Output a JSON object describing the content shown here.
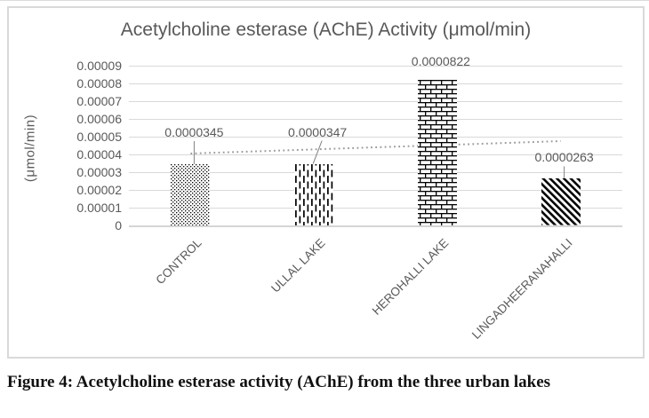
{
  "caption": "Figure 4: Acetylcholine esterase activity (AChE) from the three urban lakes",
  "chart_data": {
    "type": "bar",
    "title": "Acetylcholine esterase (AChE) Activity (μmol/min)",
    "ylabel": "(μmol/min)",
    "categories": [
      "CONTROL",
      "ULLAL LAKE",
      "HEROHALLI LAKE",
      "LINGADHEERANAHALLI"
    ],
    "values": [
      3.45e-05,
      3.47e-05,
      8.22e-05,
      2.63e-05
    ],
    "data_labels": [
      "0.0000345",
      "0.0000347",
      "0.0000822",
      "0.0000263"
    ],
    "bar_patterns": [
      "dots",
      "vertical-dashes",
      "bricks",
      "diagonal-stripes"
    ],
    "ylim": [
      0,
      9e-05
    ],
    "yticks": [
      "0.00009",
      "0.00008",
      "0.00007",
      "0.00006",
      "0.00005",
      "0.00004",
      "0.00003",
      "0.00002",
      "0.00001",
      "0"
    ],
    "grid": true,
    "legend": "none",
    "trendline": {
      "style": "dotted",
      "start_value": 4.05e-05,
      "end_value": 4.75e-05,
      "color": "#9a9a9a"
    },
    "colors": {
      "grid": "#d9d9d9",
      "text": "#595959",
      "pattern": "#000000",
      "border": "#d9d9d9"
    }
  }
}
